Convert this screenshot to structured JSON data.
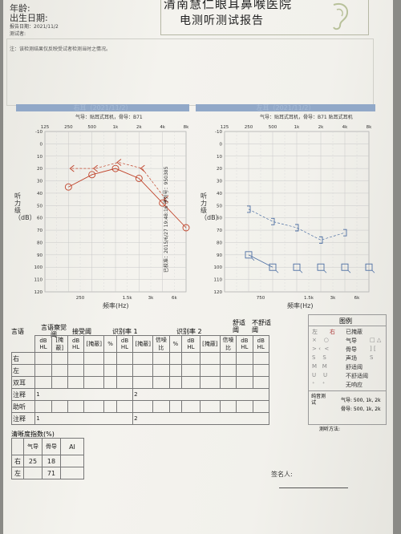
{
  "header": {
    "age_label": "年龄:",
    "birth_label": "出生日期:",
    "report_date": "报告日期：2021/11/2",
    "tester": "测试者:",
    "hospital": "清南慧仁眼耳鼻喉医院",
    "report_title": "电测听测试报告"
  },
  "note": "注：该检测结果仅反映受试者检测当时之情况。",
  "left_chart": {
    "bar_title": "右耳（2021/11/2）",
    "device": "气导：贴耳式耳机，骨导：B71",
    "y_label": "听力级（dB）",
    "x_label": "频率(Hz)",
    "vertical_stamp": "已校准：2015/6/27 19:48:16 序列号：950385",
    "top_ticks": [
      "125",
      "250",
      "500",
      "1k",
      "2k",
      "4k",
      "8k"
    ],
    "bottom_ticks": [
      "250",
      "1.5k",
      "3k",
      "6k"
    ],
    "y_ticks": [
      "-10",
      "0",
      "10",
      "20",
      "30",
      "40",
      "50",
      "60",
      "70",
      "80",
      "90",
      "100",
      "110",
      "120"
    ],
    "color": "#c0432a"
  },
  "right_chart": {
    "bar_title": "左耳（2021/11/2）",
    "device": "气导：贴耳式耳机，骨导：B71 贴耳式耳机",
    "y_label": "听力级（dB）",
    "x_label": "频率(Hz)",
    "top_ticks": [
      "125",
      "250",
      "500",
      "1k",
      "2k",
      "4k",
      "8k"
    ],
    "bottom_ticks": [
      "750",
      "1.5k",
      "3k",
      "6k"
    ],
    "y_ticks": [
      "-10",
      "0",
      "10",
      "20",
      "30",
      "40",
      "50",
      "60",
      "70",
      "80",
      "90",
      "100",
      "110",
      "120"
    ],
    "color": "#4d6fa3"
  },
  "chart_data": [
    {
      "type": "line",
      "title": "右耳（2021/11/2）",
      "xlabel": "频率(Hz)",
      "ylabel": "听力级（dB）",
      "ylim": [
        -10,
        120
      ],
      "y_reversed": true,
      "x": [
        "250",
        "500",
        "1k",
        "2k",
        "4k",
        "8k"
      ],
      "series": [
        {
          "name": "气导",
          "values": [
            35,
            25,
            20,
            28,
            48,
            68
          ]
        },
        {
          "name": "骨导",
          "values": [
            20,
            20,
            15,
            20,
            45,
            null
          ]
        }
      ]
    },
    {
      "type": "line",
      "title": "左耳（2021/11/2）",
      "xlabel": "频率(Hz)",
      "ylabel": "听力级（dB）",
      "ylim": [
        -10,
        120
      ],
      "y_reversed": true,
      "x": [
        "250",
        "500",
        "1k",
        "2k",
        "4k",
        "8k"
      ],
      "series": [
        {
          "name": "骨导",
          "values": [
            53,
            63,
            68,
            78,
            72,
            null
          ]
        },
        {
          "name": "气导",
          "values": [
            90,
            100,
            100,
            100,
            100,
            100
          ]
        }
      ]
    }
  ],
  "speech_table": {
    "headers": [
      "言语",
      "言语察觉阈",
      "接受阈",
      "识别率 1",
      "识别率 2",
      "舒适阈",
      "不舒适阈"
    ],
    "sub_headers": [
      "dB HL",
      "[掩蔽]",
      "dB HL",
      "[掩蔽]",
      "%",
      "dB HL",
      "[掩蔽]",
      "信噪比",
      "%",
      "dB HL",
      "[掩蔽]",
      "信噪比",
      "dB HL",
      "dB HL"
    ],
    "rows": [
      "右",
      "左",
      "双耳",
      "注释",
      "助听",
      "注释"
    ],
    "note_nums": [
      "1",
      "2",
      "1",
      "2"
    ]
  },
  "legend": {
    "title": "图例",
    "left": "左",
    "right": "右",
    "masked": "已掩蔽",
    "items": [
      "气导",
      "骨导",
      "声场",
      "舒适阈",
      "不舒适阈",
      "无响应"
    ],
    "pure_label": "纯音测试",
    "pure_air": "气导: 500, 1k, 2k",
    "pure_bone": "骨导: 500, 1k, 2k",
    "method": "测听方法:"
  },
  "clarity": {
    "title": "清晰度指数(%)",
    "col_air": "气导",
    "col_bone": "骨导",
    "col_ai": "AI",
    "rows": [
      {
        "ear": "右",
        "air": "25",
        "bone": "18"
      },
      {
        "ear": "左",
        "air": "",
        "bone": "71"
      }
    ]
  },
  "signature": "签名人:"
}
